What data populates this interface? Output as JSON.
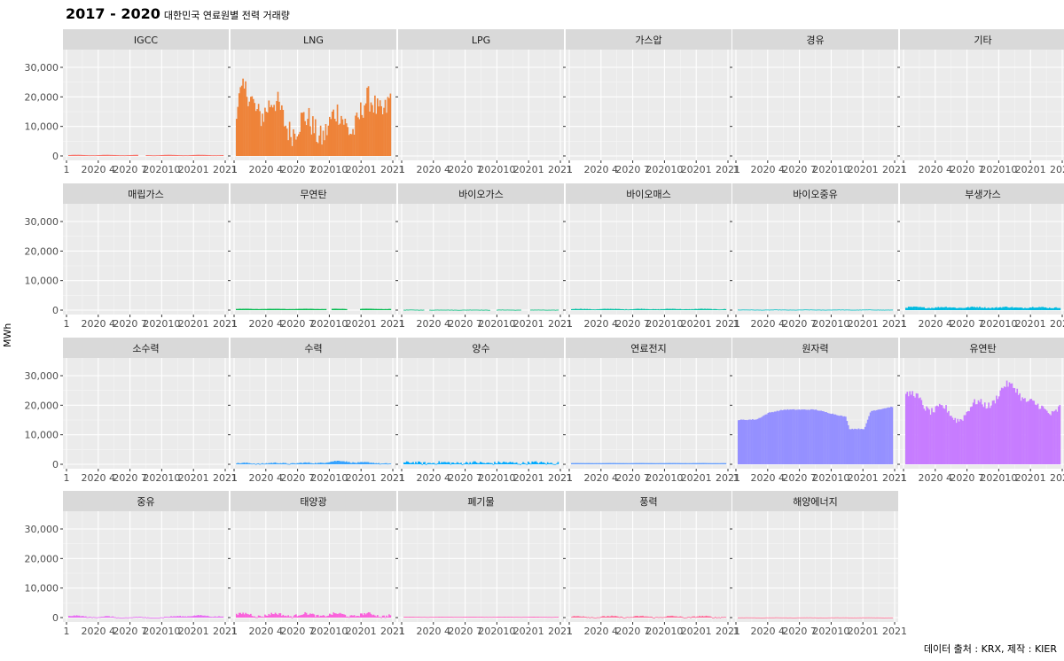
{
  "chart_data": {
    "type": "bar",
    "title": "2017 - 2020",
    "subtitle": "대한민국 연료원별 전력 거래량",
    "ylabel": "MWh",
    "xlabel": "",
    "caption": "데이터 출처 : KRX, 제작 : KIER",
    "ylim": [
      -1500,
      36000
    ],
    "yticks": [
      0,
      10000,
      20000,
      30000
    ],
    "ytick_labels": [
      "0",
      "10,000",
      "20,000",
      "30,000"
    ],
    "xtick_labels": [
      "1",
      "2020 4",
      "2020 7",
      "202010",
      "20201",
      "2021"
    ],
    "xtick_labels_first_row": [
      "1",
      "2020 4",
      "2020 7",
      "202010",
      "20201",
      "2021"
    ],
    "panels": [
      {
        "name": "IGCC",
        "color": "#F8766D",
        "base": 300,
        "amp": 80,
        "noise": 40,
        "gaps": [
          [
            0.45,
            0.5
          ]
        ]
      },
      {
        "name": "LNG",
        "color": "#EE8339",
        "base": 15000,
        "amp": 4000,
        "noise": 9000,
        "trend": [
          [
            0,
            17000
          ],
          [
            0.1,
            19000
          ],
          [
            0.45,
            9000
          ],
          [
            0.75,
            12000
          ],
          [
            1,
            20000
          ]
        ]
      },
      {
        "name": "LPG",
        "color": "#D89000",
        "base": 0,
        "amp": 0,
        "noise": 0
      },
      {
        "name": "가스압",
        "color": "#C09B00",
        "base": 0,
        "amp": 0,
        "noise": 0
      },
      {
        "name": "경유",
        "color": "#A3A500",
        "base": 0,
        "amp": 0,
        "noise": 0
      },
      {
        "name": "기타",
        "color": "#7CAE00",
        "base": 0,
        "amp": 0,
        "noise": 0
      },
      {
        "name": "매립가스",
        "color": "#39B600",
        "base": 0,
        "amp": 0,
        "noise": 0
      },
      {
        "name": "무연탄",
        "color": "#00BB4E",
        "base": 400,
        "amp": 50,
        "noise": 60,
        "gaps": [
          [
            0.58,
            0.62
          ],
          [
            0.72,
            0.8
          ]
        ]
      },
      {
        "name": "바이오가스",
        "color": "#00BF7D",
        "base": 120,
        "amp": 30,
        "noise": 80,
        "gaps": [
          [
            0.13,
            0.16
          ],
          [
            0.56,
            0.6
          ],
          [
            0.76,
            0.82
          ]
        ]
      },
      {
        "name": "바이오매스",
        "color": "#00C1A3",
        "base": 350,
        "amp": 80,
        "noise": 150
      },
      {
        "name": "바이오중유",
        "color": "#00BFC4",
        "base": 150,
        "amp": 30,
        "noise": 80
      },
      {
        "name": "부생가스",
        "color": "#00BAE0",
        "base": 900,
        "amp": 150,
        "noise": 400
      },
      {
        "name": "소수력",
        "color": "#00B0F6",
        "base": 0,
        "amp": 0,
        "noise": 0
      },
      {
        "name": "수력",
        "color": "#35A2FF",
        "base": 300,
        "amp": 150,
        "noise": 350,
        "trend": [
          [
            0,
            300
          ],
          [
            0.5,
            400
          ],
          [
            0.68,
            1100
          ],
          [
            0.78,
            600
          ],
          [
            1,
            300
          ]
        ]
      },
      {
        "name": "양수",
        "color": "#00A9FF",
        "base": 500,
        "amp": 150,
        "noise": 900
      },
      {
        "name": "연료전지",
        "color": "#619CFF",
        "base": 400,
        "amp": 20,
        "noise": 30
      },
      {
        "name": "원자력",
        "color": "#9590FF",
        "base": 17000,
        "amp": 0,
        "noise": 300,
        "trend": [
          [
            0,
            15000
          ],
          [
            0.12,
            15200
          ],
          [
            0.2,
            17500
          ],
          [
            0.3,
            18500
          ],
          [
            0.5,
            18500
          ],
          [
            0.62,
            17000
          ],
          [
            0.7,
            16000
          ],
          [
            0.72,
            12000
          ],
          [
            0.82,
            12000
          ],
          [
            0.86,
            18000
          ],
          [
            1,
            19500
          ]
        ]
      },
      {
        "name": "유연탄",
        "color": "#C77CFF",
        "base": 20000,
        "amp": 2000,
        "noise": 2500,
        "trend": [
          [
            0,
            23000
          ],
          [
            0.15,
            20000
          ],
          [
            0.3,
            16000
          ],
          [
            0.45,
            19000
          ],
          [
            0.65,
            25000
          ],
          [
            0.72,
            26500
          ],
          [
            0.85,
            18000
          ],
          [
            1,
            19500
          ]
        ]
      },
      {
        "name": "중유",
        "color": "#E76BF3",
        "base": 200,
        "amp": 200,
        "noise": 300,
        "trend": [
          [
            0,
            500
          ],
          [
            0.4,
            50
          ],
          [
            0.65,
            80
          ],
          [
            0.72,
            600
          ],
          [
            1,
            500
          ]
        ]
      },
      {
        "name": "태양광",
        "color": "#FA62DB",
        "base": 900,
        "amp": 500,
        "noise": 900
      },
      {
        "name": "폐기물",
        "color": "#FF62BC",
        "base": 250,
        "amp": 30,
        "noise": 50
      },
      {
        "name": "풍력",
        "color": "#FF6A98",
        "base": 300,
        "amp": 200,
        "noise": 400
      },
      {
        "name": "해양에너지",
        "color": "#FF6C91",
        "base": 40,
        "amp": 20,
        "noise": 40
      }
    ]
  }
}
